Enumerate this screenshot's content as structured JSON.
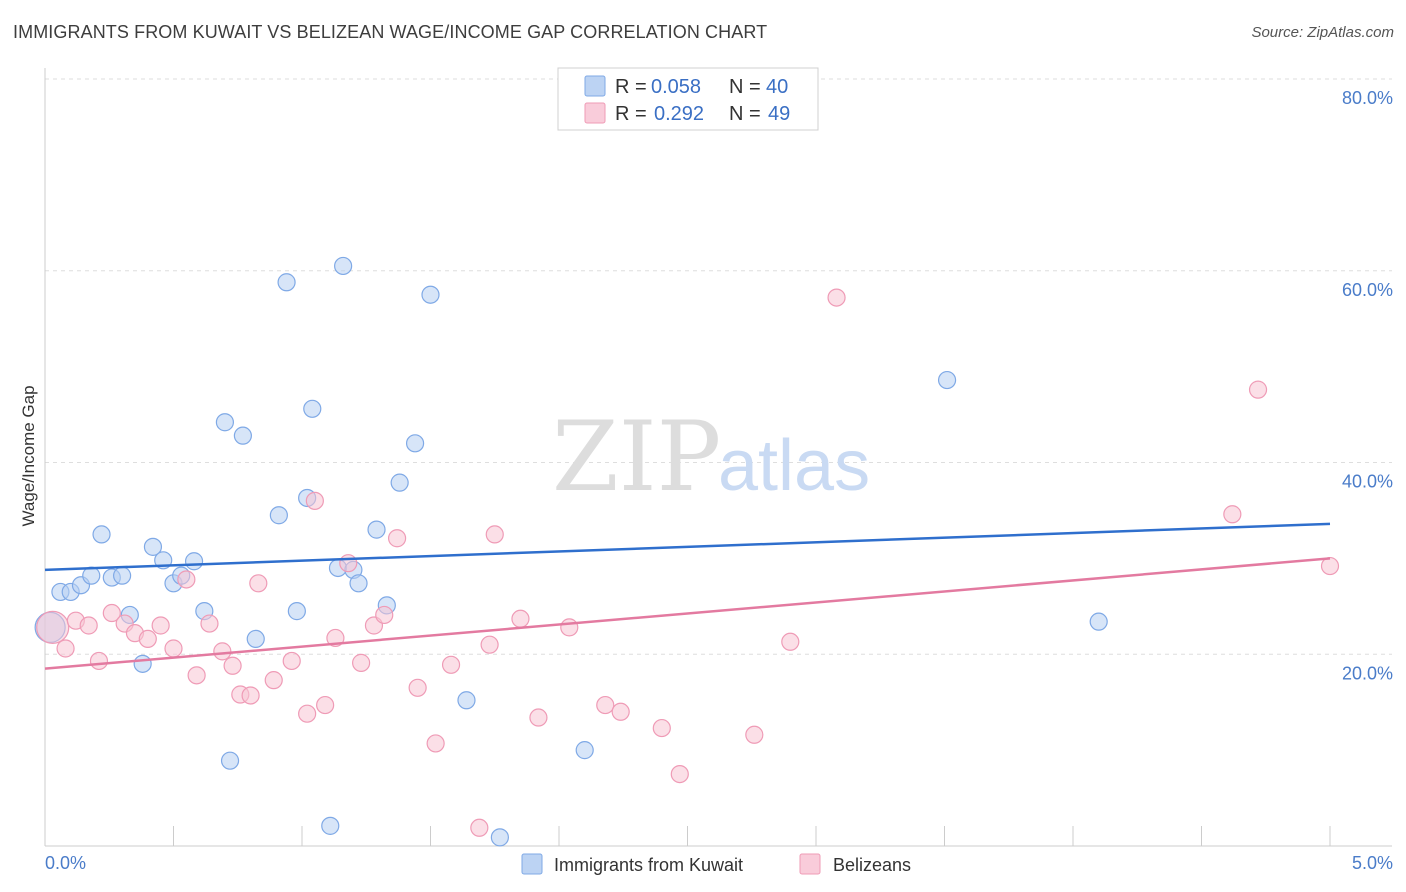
{
  "header": {
    "title": "IMMIGRANTS FROM KUWAIT VS BELIZEAN WAGE/INCOME GAP CORRELATION CHART",
    "source": "Source: ZipAtlas.com"
  },
  "legend": {
    "rows": [
      {
        "r_label": "R =",
        "r_value": "0.058",
        "n_label": "N =",
        "n_value": "40",
        "color": "#a9c8f0"
      },
      {
        "r_label": "R =",
        "r_value": "0.292",
        "n_label": "N =",
        "n_value": "49",
        "color": "#f7b9cc"
      }
    ]
  },
  "watermark": {
    "zip": "ZIP",
    "atlas": "atlas"
  },
  "chart_data": {
    "type": "scatter",
    "ylabel": "Wage/Income Gap",
    "xlim": [
      0,
      5
    ],
    "ylim": [
      0,
      80
    ],
    "x_tick_labels": [
      "0.0%",
      "5.0%"
    ],
    "y_tick_labels": [
      "20.0%",
      "40.0%",
      "60.0%",
      "80.0%"
    ],
    "y_ticks": [
      20,
      40,
      60,
      80
    ],
    "grid": true,
    "legend_placement": "top-center",
    "series": [
      {
        "name": "Immigrants from Kuwait",
        "color": "#7fa9e6",
        "fill": "#b7d0f2",
        "trend": {
          "x": [
            0,
            5
          ],
          "y": [
            28.8,
            33.6
          ],
          "color": "#2f6fcd"
        },
        "points": [
          [
            0.02,
            22.8
          ],
          [
            0.06,
            26.5
          ],
          [
            0.1,
            26.5
          ],
          [
            0.14,
            27.2
          ],
          [
            0.18,
            28.2
          ],
          [
            0.22,
            32.5
          ],
          [
            0.26,
            28.0
          ],
          [
            0.3,
            28.2
          ],
          [
            0.33,
            24.1
          ],
          [
            0.38,
            19.0
          ],
          [
            0.42,
            31.2
          ],
          [
            0.46,
            29.8
          ],
          [
            0.5,
            27.4
          ],
          [
            0.53,
            28.2
          ],
          [
            0.58,
            29.7
          ],
          [
            0.62,
            24.5
          ],
          [
            0.7,
            44.2
          ],
          [
            0.72,
            8.9
          ],
          [
            0.77,
            42.8
          ],
          [
            0.82,
            21.6
          ],
          [
            0.91,
            34.5
          ],
          [
            0.94,
            58.8
          ],
          [
            0.98,
            24.5
          ],
          [
            1.02,
            36.3
          ],
          [
            1.04,
            45.6
          ],
          [
            1.11,
            2.1
          ],
          [
            1.14,
            29.0
          ],
          [
            1.16,
            60.5
          ],
          [
            1.2,
            28.8
          ],
          [
            1.22,
            27.4
          ],
          [
            1.29,
            33.0
          ],
          [
            1.33,
            25.1
          ],
          [
            1.38,
            37.9
          ],
          [
            1.44,
            42.0
          ],
          [
            1.5,
            57.5
          ],
          [
            1.64,
            15.2
          ],
          [
            1.77,
            0.9
          ],
          [
            2.1,
            10.0
          ],
          [
            3.51,
            48.6
          ],
          [
            4.1,
            23.4
          ]
        ]
      },
      {
        "name": "Belizeans",
        "color": "#ef9bb6",
        "fill": "#f8c4d4",
        "trend": {
          "x": [
            0,
            5
          ],
          "y": [
            18.5,
            30.0
          ],
          "color": "#e37aa0"
        },
        "points": [
          [
            0.03,
            22.8
          ],
          [
            0.08,
            20.6
          ],
          [
            0.12,
            23.5
          ],
          [
            0.17,
            23.0
          ],
          [
            0.21,
            19.3
          ],
          [
            0.26,
            24.3
          ],
          [
            0.31,
            23.2
          ],
          [
            0.35,
            22.2
          ],
          [
            0.4,
            21.6
          ],
          [
            0.45,
            23.0
          ],
          [
            0.5,
            20.6
          ],
          [
            0.55,
            27.8
          ],
          [
            0.59,
            17.8
          ],
          [
            0.64,
            23.2
          ],
          [
            0.69,
            20.3
          ],
          [
            0.73,
            18.8
          ],
          [
            0.76,
            15.8
          ],
          [
            0.8,
            15.7
          ],
          [
            0.83,
            27.4
          ],
          [
            0.89,
            17.3
          ],
          [
            0.96,
            19.3
          ],
          [
            1.02,
            13.8
          ],
          [
            1.05,
            36.0
          ],
          [
            1.09,
            14.7
          ],
          [
            1.13,
            21.7
          ],
          [
            1.18,
            29.5
          ],
          [
            1.23,
            19.1
          ],
          [
            1.28,
            23.0
          ],
          [
            1.32,
            24.1
          ],
          [
            1.37,
            32.1
          ],
          [
            1.45,
            16.5
          ],
          [
            1.52,
            10.7
          ],
          [
            1.58,
            18.9
          ],
          [
            1.69,
            1.9
          ],
          [
            1.73,
            21.0
          ],
          [
            1.75,
            32.5
          ],
          [
            1.85,
            23.7
          ],
          [
            1.92,
            13.4
          ],
          [
            2.04,
            22.8
          ],
          [
            2.18,
            14.7
          ],
          [
            2.24,
            14.0
          ],
          [
            2.4,
            12.3
          ],
          [
            2.47,
            7.5
          ],
          [
            2.76,
            11.6
          ],
          [
            2.9,
            21.3
          ],
          [
            3.08,
            57.2
          ],
          [
            4.62,
            34.6
          ],
          [
            4.72,
            47.6
          ],
          [
            5.0,
            29.2
          ]
        ]
      }
    ]
  }
}
